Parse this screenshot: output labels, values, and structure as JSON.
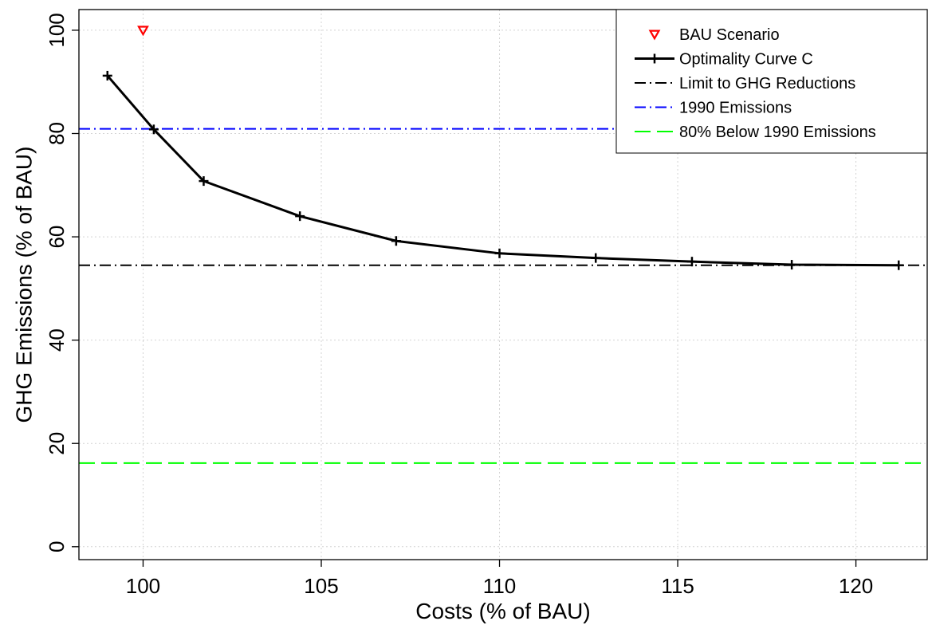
{
  "chart_data": {
    "type": "line",
    "title": "",
    "xlabel": "Costs (% of BAU)",
    "ylabel": "GHG Emissions (% of BAU)",
    "xlim": [
      98.2,
      122.0
    ],
    "ylim": [
      -2.5,
      104.0
    ],
    "xticks": [
      100,
      105,
      110,
      115,
      120
    ],
    "yticks": [
      0,
      20,
      40,
      60,
      80,
      100
    ],
    "grid": true,
    "legend_position": "top-right",
    "series": [
      {
        "name": "Optimality Curve C",
        "kind": "line-with-plus-markers",
        "color": "#000000",
        "x": [
          99.0,
          100.3,
          101.7,
          104.4,
          107.1,
          110.0,
          112.7,
          115.4,
          118.2,
          121.2
        ],
        "y": [
          91.2,
          80.8,
          70.8,
          64.0,
          59.2,
          56.8,
          55.9,
          55.2,
          54.6,
          54.5
        ]
      },
      {
        "name": "BAU Scenario",
        "kind": "point-triangle-down",
        "color": "#ff0000",
        "x": [
          100.0
        ],
        "y": [
          100.0
        ]
      }
    ],
    "reference_lines": [
      {
        "name": "Limit to GHG Reductions",
        "y": 54.5,
        "color": "#000000",
        "dash": "dot-dash"
      },
      {
        "name": "1990 Emissions",
        "y": 80.9,
        "color": "#0000ff",
        "dash": "dot-dash"
      },
      {
        "name": "80% Below 1990 Emissions",
        "y": 16.2,
        "color": "#00ff00",
        "dash": "long-dash"
      }
    ],
    "legend": [
      "BAU Scenario",
      "Optimality Curve C",
      "Limit to GHG Reductions",
      "1990 Emissions",
      "80% Below 1990 Emissions"
    ]
  }
}
